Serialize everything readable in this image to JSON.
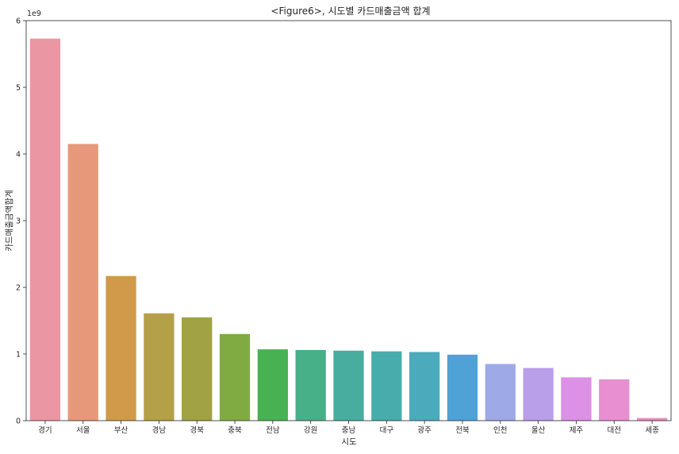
{
  "chart_data": {
    "type": "bar",
    "title": "<Figure6>, 시도별 카드매출금액 합계",
    "xlabel": "시도",
    "ylabel": "카드매출금액합계",
    "y_offset_label": "1e9",
    "ylim": [
      0,
      6.0
    ],
    "y_unit_multiplier": 1000000000,
    "yticks": [
      "0",
      "1",
      "2",
      "3",
      "4",
      "5",
      "6"
    ],
    "grid": false,
    "categories": [
      "경기",
      "서울",
      "부산",
      "경남",
      "경북",
      "충북",
      "전남",
      "강원",
      "충남",
      "대구",
      "광주",
      "전북",
      "인천",
      "울산",
      "제주",
      "대전",
      "세종"
    ],
    "values": [
      5.73,
      4.15,
      2.17,
      1.61,
      1.55,
      1.3,
      1.07,
      1.06,
      1.05,
      1.04,
      1.03,
      0.99,
      0.85,
      0.79,
      0.65,
      0.62,
      0.04
    ],
    "colors": [
      "#ea96a3",
      "#e8987a",
      "#d09a4a",
      "#b4a048",
      "#a0a243",
      "#80ab43",
      "#48b253",
      "#48b089",
      "#48ad9f",
      "#49acac",
      "#4caabd",
      "#4ea2d6",
      "#9eaae8",
      "#b99ee9",
      "#dc90e6",
      "#e78fd0",
      "#e98fc0"
    ]
  }
}
